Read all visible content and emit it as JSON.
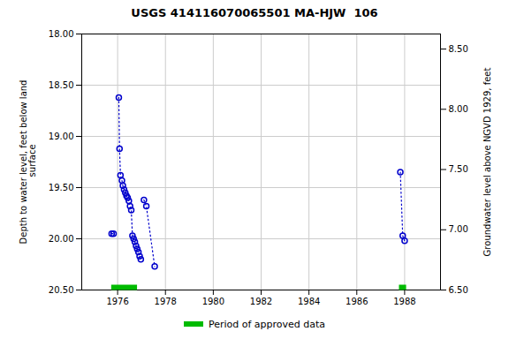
{
  "chart_data": {
    "type": "line",
    "title": "USGS 414116070065501 MA-HJW  106",
    "ylabel": "Depth to water level, feet below land\n surface",
    "y2label": "Groundwater level above NGVD 1929, feet",
    "xlim": [
      1974.5,
      1989.5
    ],
    "xticks": [
      1976,
      1978,
      1980,
      1982,
      1984,
      1986,
      1988
    ],
    "ylim": [
      20.5,
      18.0
    ],
    "yticks": [
      {
        "value": 18.0,
        "label": "18.00"
      },
      {
        "value": 18.5,
        "label": "18.50"
      },
      {
        "value": 19.0,
        "label": "19.00"
      },
      {
        "value": 19.5,
        "label": "19.50"
      },
      {
        "value": 20.0,
        "label": "20.00"
      },
      {
        "value": 20.5,
        "label": "20.50"
      }
    ],
    "y2lim": [
      6.5,
      8.625
    ],
    "y2ticks": [
      {
        "value": 6.5,
        "label": "6.50"
      },
      {
        "value": 7.0,
        "label": "7.00"
      },
      {
        "value": 7.5,
        "label": "7.50"
      },
      {
        "value": 8.0,
        "label": "8.00"
      },
      {
        "value": 8.5,
        "label": "8.50"
      }
    ],
    "grid": true,
    "legend": "bottom",
    "series": [
      {
        "type": "line",
        "color": "#0000cc",
        "marker": "circle",
        "line_style": "dotted",
        "x": [
          1975.75,
          1975.83
        ],
        "values": [
          19.95,
          19.95
        ]
      },
      {
        "type": "line",
        "color": "#0000cc",
        "marker": "circle",
        "line_style": "dotted",
        "x": [
          1976.05,
          1976.08,
          1976.12,
          1976.18,
          1976.22,
          1976.27,
          1976.32,
          1976.37,
          1976.42,
          1976.47,
          1976.52,
          1976.57,
          1976.62,
          1976.67,
          1976.72,
          1976.77,
          1976.82,
          1976.87,
          1976.92,
          1976.97
        ],
        "values": [
          18.62,
          19.12,
          19.38,
          19.43,
          19.48,
          19.52,
          19.55,
          19.58,
          19.6,
          19.63,
          19.68,
          19.72,
          19.97,
          20.0,
          20.03,
          20.07,
          20.1,
          20.13,
          20.17,
          20.2
        ]
      },
      {
        "type": "line",
        "color": "#0000cc",
        "marker": "circle",
        "line_style": "dotted",
        "x": [
          1977.1,
          1977.2,
          1977.55
        ],
        "values": [
          19.62,
          19.68,
          20.27
        ]
      },
      {
        "type": "line",
        "color": "#0000cc",
        "marker": "circle",
        "line_style": "dotted",
        "x": [
          1987.82,
          1987.92,
          1988.0
        ],
        "values": [
          19.35,
          19.97,
          20.02
        ]
      },
      {
        "type": "span",
        "name": "Period of approved data",
        "color": "#00bb00",
        "ranges": [
          [
            1975.75,
            1976.83
          ],
          [
            1987.78,
            1988.08
          ]
        ]
      }
    ]
  }
}
